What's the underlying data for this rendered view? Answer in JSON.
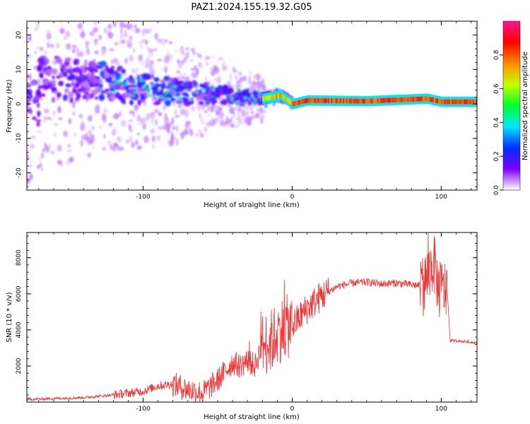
{
  "figure": {
    "title": "PAZ1.2024.155.19.32.G05"
  },
  "chart_data": [
    {
      "type": "heatmap",
      "xlabel": "Height of straight line (km)",
      "ylabel": "Frequency (Hz)",
      "xlim": [
        -178,
        124
      ],
      "ylim": [
        -25,
        24
      ],
      "xticks": [
        -100,
        0,
        100
      ],
      "yticks": [
        -20,
        -10,
        0,
        10,
        20
      ],
      "colorbar": {
        "label": "Normalized spectral amplitude",
        "range": [
          0,
          1
        ],
        "ticks": [
          "0.0",
          "0.2",
          "0.4",
          "0.6",
          "0.8"
        ],
        "colormap": [
          "#ffffff",
          "#7a00ff",
          "#0030ff",
          "#00e5ff",
          "#00ff30",
          "#c8ff00",
          "#ff8c00",
          "#ff0000",
          "#ff1493"
        ]
      },
      "ridge": [
        {
          "x": -170,
          "f": 8
        },
        {
          "x": -150,
          "f": 7
        },
        {
          "x": -130,
          "f": 7
        },
        {
          "x": -110,
          "f": 5
        },
        {
          "x": -90,
          "f": 4
        },
        {
          "x": -70,
          "f": 3
        },
        {
          "x": -50,
          "f": 3
        },
        {
          "x": -35,
          "f": 2
        },
        {
          "x": -20,
          "f": 1.5
        },
        {
          "x": -8,
          "f": 2.5
        },
        {
          "x": 0,
          "f": 0
        },
        {
          "x": 10,
          "f": 1
        },
        {
          "x": 50,
          "f": 0.8
        },
        {
          "x": 90,
          "f": 1.5
        },
        {
          "x": 100,
          "f": 0.6
        },
        {
          "x": 124,
          "f": 0.6
        }
      ]
    },
    {
      "type": "line",
      "xlabel": "Height of straight line (km)",
      "ylabel": "SNR (10 * v/v)",
      "xlim": [
        -178,
        124
      ],
      "ylim": [
        0,
        9400
      ],
      "xticks": [
        -100,
        0,
        100
      ],
      "yticks": [
        2000,
        4000,
        6000,
        8000
      ],
      "color": "#ee3333",
      "series": [
        {
          "x": [
            -178,
            -160,
            -140,
            -120,
            -100,
            -90,
            -80,
            -70,
            -60,
            -50,
            -45,
            -40,
            -35,
            -30,
            -25,
            -20,
            -15,
            -10,
            -5,
            0,
            10,
            20,
            30,
            40,
            50,
            60,
            70,
            80,
            88,
            92,
            95,
            98,
            100,
            104,
            106,
            110,
            124
          ],
          "y": [
            150,
            200,
            250,
            400,
            600,
            900,
            1000,
            700,
            500,
            1200,
            1700,
            2200,
            2000,
            2300,
            2000,
            3200,
            3300,
            3800,
            4200,
            4200,
            5200,
            5900,
            6400,
            6600,
            6650,
            6550,
            6600,
            6500,
            6450,
            7200,
            7800,
            6300,
            6200,
            6250,
            3400,
            3400,
            3300
          ]
        }
      ]
    }
  ]
}
